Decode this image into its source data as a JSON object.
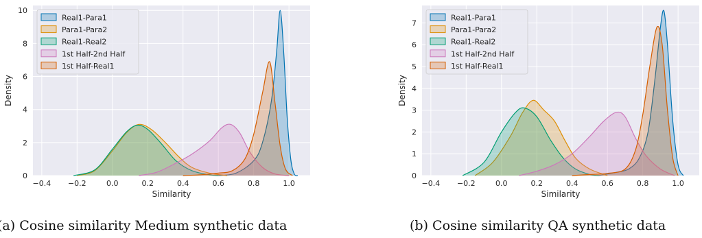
{
  "chart_data": [
    {
      "type": "area",
      "chart_kind": "kde",
      "caption": "(a) Cosine similarity Medium synthetic data",
      "xlabel": "Similarity",
      "ylabel": "Density",
      "xlim": [
        -0.45,
        1.12
      ],
      "ylim": [
        0,
        10.3
      ],
      "xticks": [
        -0.4,
        -0.2,
        0.0,
        0.2,
        0.4,
        0.6,
        0.8,
        1.0
      ],
      "yticks": [
        0,
        2,
        4,
        6,
        8,
        10
      ],
      "grid": true,
      "legend_position": "top-left",
      "series": [
        {
          "name": "Real1-Para1",
          "color": "#0173b2",
          "points": [
            [
              0.6,
              0
            ],
            [
              0.7,
              0.15
            ],
            [
              0.8,
              0.9
            ],
            [
              0.85,
              2.0
            ],
            [
              0.9,
              4.5
            ],
            [
              0.93,
              7.5
            ],
            [
              0.95,
              10.0
            ],
            [
              0.97,
              7.5
            ],
            [
              0.99,
              3.5
            ],
            [
              1.01,
              1.0
            ],
            [
              1.03,
              0.1
            ],
            [
              1.05,
              0
            ]
          ]
        },
        {
          "name": "Para1-Para2",
          "color": "#de8f05",
          "points": [
            [
              -0.2,
              0
            ],
            [
              -0.1,
              0.3
            ],
            [
              0.0,
              1.5
            ],
            [
              0.08,
              2.6
            ],
            [
              0.15,
              3.1
            ],
            [
              0.22,
              2.8
            ],
            [
              0.3,
              2.0
            ],
            [
              0.38,
              1.1
            ],
            [
              0.45,
              0.5
            ],
            [
              0.55,
              0.15
            ],
            [
              0.65,
              0
            ]
          ]
        },
        {
          "name": "Real1-Real2",
          "color": "#029e73",
          "points": [
            [
              -0.22,
              0
            ],
            [
              -0.1,
              0.35
            ],
            [
              0.0,
              1.6
            ],
            [
              0.08,
              2.65
            ],
            [
              0.14,
              3.05
            ],
            [
              0.2,
              2.8
            ],
            [
              0.28,
              1.9
            ],
            [
              0.36,
              0.9
            ],
            [
              0.45,
              0.3
            ],
            [
              0.55,
              0.05
            ],
            [
              0.6,
              0
            ]
          ]
        },
        {
          "name": "1st Half-2nd Half",
          "color": "#cc78bc",
          "points": [
            [
              0.15,
              0
            ],
            [
              0.25,
              0.2
            ],
            [
              0.35,
              0.7
            ],
            [
              0.45,
              1.3
            ],
            [
              0.55,
              2.1
            ],
            [
              0.62,
              2.9
            ],
            [
              0.67,
              3.1
            ],
            [
              0.72,
              2.6
            ],
            [
              0.78,
              1.4
            ],
            [
              0.85,
              0.5
            ],
            [
              0.92,
              0.1
            ],
            [
              1.0,
              0
            ]
          ]
        },
        {
          "name": "1st Half-Real1",
          "color": "#d55e00",
          "points": [
            [
              0.4,
              0
            ],
            [
              0.5,
              0.05
            ],
            [
              0.6,
              0.15
            ],
            [
              0.68,
              0.3
            ],
            [
              0.75,
              1.0
            ],
            [
              0.8,
              2.5
            ],
            [
              0.85,
              5.0
            ],
            [
              0.89,
              6.9
            ],
            [
              0.92,
              4.5
            ],
            [
              0.95,
              1.8
            ],
            [
              0.98,
              0.4
            ],
            [
              1.02,
              0
            ]
          ]
        }
      ]
    },
    {
      "type": "area",
      "chart_kind": "kde",
      "caption": "(b) Cosine similarity QA synthetic data",
      "xlabel": "Similarity",
      "ylabel": "Density",
      "xlim": [
        -0.45,
        1.12
      ],
      "ylim": [
        0,
        7.8
      ],
      "xticks": [
        -0.4,
        -0.2,
        0.0,
        0.2,
        0.4,
        0.6,
        0.8,
        1.0
      ],
      "yticks": [
        0,
        1,
        2,
        3,
        4,
        5,
        6,
        7
      ],
      "grid": true,
      "legend_position": "top-left",
      "series": [
        {
          "name": "Real1-Para1",
          "color": "#0173b2",
          "points": [
            [
              0.55,
              0
            ],
            [
              0.65,
              0.15
            ],
            [
              0.72,
              0.3
            ],
            [
              0.78,
              0.8
            ],
            [
              0.83,
              2.0
            ],
            [
              0.87,
              4.5
            ],
            [
              0.9,
              6.8
            ],
            [
              0.92,
              7.55
            ],
            [
              0.94,
              6.0
            ],
            [
              0.97,
              2.5
            ],
            [
              1.0,
              0.5
            ],
            [
              1.03,
              0
            ]
          ]
        },
        {
          "name": "Para1-Para2",
          "color": "#de8f05",
          "points": [
            [
              -0.15,
              0
            ],
            [
              -0.05,
              0.6
            ],
            [
              0.05,
              1.8
            ],
            [
              0.12,
              2.9
            ],
            [
              0.18,
              3.45
            ],
            [
              0.24,
              3.0
            ],
            [
              0.3,
              2.5
            ],
            [
              0.36,
              1.6
            ],
            [
              0.42,
              0.8
            ],
            [
              0.5,
              0.3
            ],
            [
              0.6,
              0
            ]
          ]
        },
        {
          "name": "Real1-Real2",
          "color": "#029e73",
          "points": [
            [
              -0.22,
              0
            ],
            [
              -0.1,
              0.6
            ],
            [
              0.0,
              2.0
            ],
            [
              0.08,
              2.9
            ],
            [
              0.13,
              3.1
            ],
            [
              0.2,
              2.7
            ],
            [
              0.28,
              1.6
            ],
            [
              0.35,
              0.8
            ],
            [
              0.42,
              0.3
            ],
            [
              0.5,
              0.05
            ],
            [
              0.55,
              0
            ]
          ]
        },
        {
          "name": "1st Half-2nd Half",
          "color": "#cc78bc",
          "points": [
            [
              0.1,
              0
            ],
            [
              0.2,
              0.2
            ],
            [
              0.3,
              0.5
            ],
            [
              0.4,
              1.0
            ],
            [
              0.5,
              1.8
            ],
            [
              0.58,
              2.5
            ],
            [
              0.65,
              2.9
            ],
            [
              0.7,
              2.7
            ],
            [
              0.76,
              1.7
            ],
            [
              0.82,
              0.9
            ],
            [
              0.9,
              0.3
            ],
            [
              0.98,
              0
            ]
          ]
        },
        {
          "name": "1st Half-Real1",
          "color": "#d55e00",
          "points": [
            [
              0.4,
              0
            ],
            [
              0.5,
              0.05
            ],
            [
              0.6,
              0.1
            ],
            [
              0.7,
              0.3
            ],
            [
              0.76,
              1.2
            ],
            [
              0.8,
              2.8
            ],
            [
              0.84,
              5.0
            ],
            [
              0.88,
              6.8
            ],
            [
              0.91,
              6.0
            ],
            [
              0.94,
              3.0
            ],
            [
              0.97,
              0.8
            ],
            [
              1.0,
              0
            ]
          ]
        }
      ]
    }
  ]
}
